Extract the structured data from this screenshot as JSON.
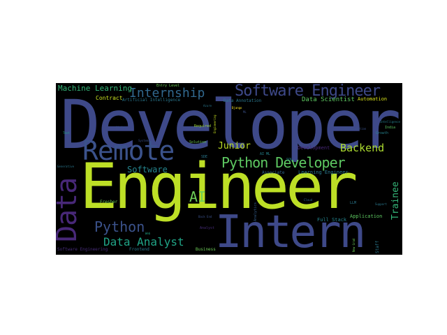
{
  "word_cloud": {
    "words": [
      {
        "text": "Developer",
        "color": "#3e4989"
      },
      {
        "text": "Engineer",
        "color": "#bddf26"
      },
      {
        "text": "Intern",
        "color": "#3e4989"
      },
      {
        "text": "Data",
        "color": "#482878"
      },
      {
        "text": "Remote",
        "color": "#3b528b"
      },
      {
        "text": "Software Engineer",
        "color": "#3e4989"
      },
      {
        "text": "Internship",
        "color": "#31688e"
      },
      {
        "text": "Python Developer",
        "color": "#5ec962"
      },
      {
        "text": "Python",
        "color": "#3b528b"
      },
      {
        "text": "Data Analyst",
        "color": "#20a486"
      },
      {
        "text": "AI",
        "color": "#6ece58"
      },
      {
        "text": "Backend",
        "color": "#addc30"
      },
      {
        "text": "Junior",
        "color": "#bddf26"
      },
      {
        "text": "Software",
        "color": "#25858e"
      },
      {
        "text": "Trainee",
        "color": "#35b779"
      },
      {
        "text": "Machine Learning",
        "color": "#35b779"
      },
      {
        "text": "Data Scientist",
        "color": "#5ec962"
      },
      {
        "text": "Contract",
        "color": "#c8e020"
      },
      {
        "text": "Artificial Intelligence",
        "color": "#2a788e"
      },
      {
        "text": "Entry Level",
        "color": "#6ece58"
      },
      {
        "text": "Data Annotation",
        "color": "#2a788e"
      },
      {
        "text": "Automation",
        "color": "#d8e219"
      },
      {
        "text": "Development",
        "color": "#482878"
      },
      {
        "text": "Learning Engineer",
        "color": "#2a788e"
      },
      {
        "text": "Full Stack",
        "color": "#25858e"
      },
      {
        "text": "Application",
        "color": "#5ec962"
      },
      {
        "text": "Associate",
        "color": "#31688e"
      },
      {
        "text": "Fresher",
        "color": "#6ece58"
      },
      {
        "text": "Frontend",
        "color": "#2a788e"
      },
      {
        "text": "Analyst",
        "color": "#472c7a"
      },
      {
        "text": "Business",
        "color": "#6ece58"
      },
      {
        "text": "Staff",
        "color": "#2a788e"
      },
      {
        "text": "Growth",
        "color": "#26828e"
      },
      {
        "text": "India",
        "color": "#5ec962"
      },
      {
        "text": "LLM",
        "color": "#2a788e"
      },
      {
        "text": "Solution",
        "color": "#6ece58"
      },
      {
        "text": "Required",
        "color": "#9fda3a"
      },
      {
        "text": "SDE",
        "color": "#2a788e"
      },
      {
        "text": "SQL",
        "color": "#25858e"
      },
      {
        "text": "AI ML",
        "color": "#25858e"
      },
      {
        "text": "Software Engineering",
        "color": "#472c7a"
      },
      {
        "text": "Visualization",
        "color": "#3b528b"
      },
      {
        "text": "Intelligence",
        "color": "#26828e"
      },
      {
        "text": "Azure",
        "color": "#2a788e"
      },
      {
        "text": "Django",
        "color": "#fde725"
      },
      {
        "text": "Vision",
        "color": "#3b528b"
      },
      {
        "text": "Back End",
        "color": "#3b528b"
      },
      {
        "text": "Engineering",
        "color": "#c8e020"
      },
      {
        "text": "Analytics",
        "color": "#355f8d"
      },
      {
        "text": "Systems",
        "color": "#3b528b"
      },
      {
        "text": "Cloud",
        "color": "#31688e"
      },
      {
        "text": "Support",
        "color": "#2a788e"
      },
      {
        "text": "Generative",
        "color": "#2a788e"
      },
      {
        "text": "New Grad",
        "color": "#6ece58"
      },
      {
        "text": "ML",
        "color": "#3b528b"
      },
      {
        "text": "Web",
        "color": "#20a486"
      },
      {
        "text": "Test",
        "color": "#22a884"
      }
    ]
  }
}
